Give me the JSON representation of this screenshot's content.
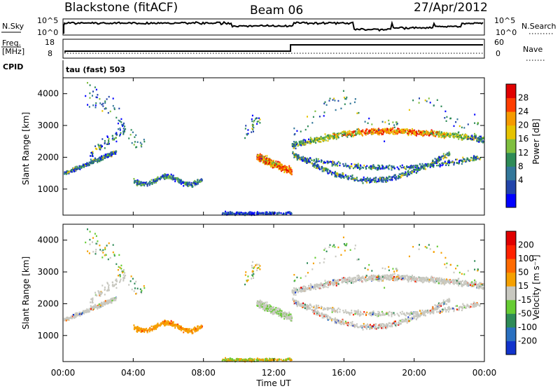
{
  "header": {
    "station": "Blackstone (fitACF)",
    "beam": "Beam 06",
    "date": "27/Apr/2012"
  },
  "meta_panels": {
    "nsky_label": "N.Sky",
    "nsearch_label": "N.Search",
    "nsky_ticks": [
      "10^5",
      "10^0"
    ],
    "nsearch_ticks": [
      "10^5",
      "10^0"
    ],
    "freq_label": "Freq.",
    "freq_unit": "[MHz]",
    "freq_ticks": [
      "18",
      "8"
    ],
    "nave_label": "Nave",
    "nave_ticks": [
      "60",
      "0"
    ],
    "cpid_label": "CPID",
    "cpid_value": "tau (fast) 503"
  },
  "chart_data": [
    {
      "type": "heatmap",
      "name": "power",
      "ylabel": "Slant Range [km]",
      "ylim": [
        180,
        4500
      ],
      "yticks": [
        "1000",
        "2000",
        "3000",
        "4000"
      ],
      "colorbar_label": "Power [dB]",
      "colorbar_ticks": [
        "28",
        "24",
        "20",
        "16",
        "12",
        "8",
        "4"
      ],
      "colors": [
        "#0000ff",
        "#2244aa",
        "#33779a",
        "#2e8b57",
        "#7fbf3f",
        "#e6c300",
        "#f59a00",
        "#ff3d00",
        "#e00000"
      ]
    },
    {
      "type": "heatmap",
      "name": "velocity",
      "ylabel": "Slant Range [km]",
      "ylim": [
        180,
        4500
      ],
      "yticks": [
        "1000",
        "2000",
        "3000",
        "4000"
      ],
      "colorbar_label": "Velocity [m s⁻¹]",
      "colorbar_ticks": [
        "200",
        "100",
        "50",
        "15",
        "-15",
        "-50",
        "-100",
        "-200"
      ],
      "colors": [
        "#1133cc",
        "#2a70c0",
        "#2e8b57",
        "#66cc33",
        "#c8c8c0",
        "#f5a000",
        "#ff6a00",
        "#ff2200",
        "#e00000"
      ]
    }
  ],
  "x_axis": {
    "ticks": [
      "00:00",
      "04:00",
      "08:00",
      "12:00",
      "16:00",
      "20:00",
      "00:00"
    ],
    "label": "Time UT"
  }
}
